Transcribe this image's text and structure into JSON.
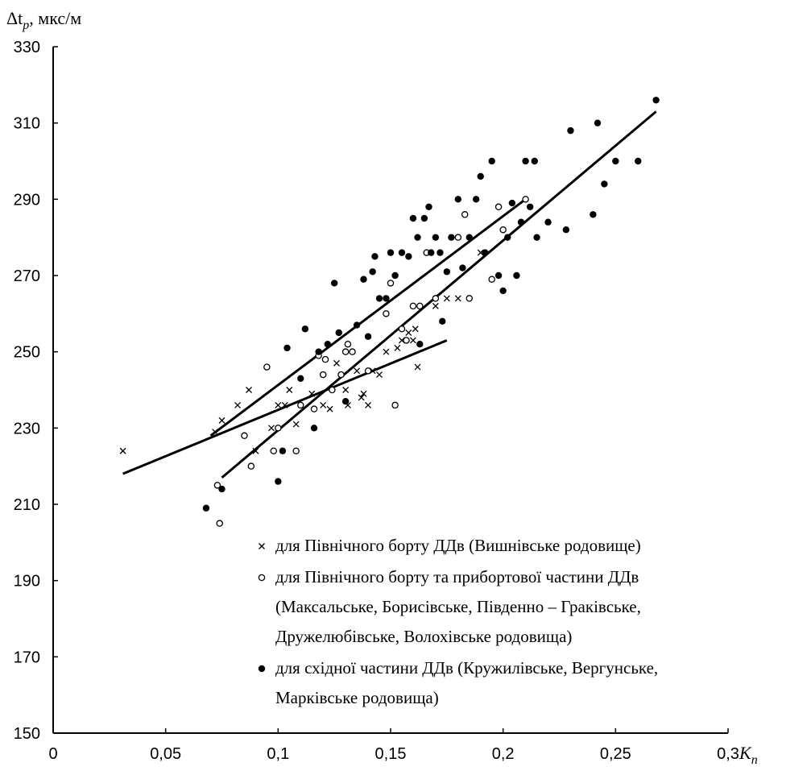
{
  "chart_data": {
    "type": "scatter",
    "title": "",
    "ylabel": "Δt",
    "ylabel_sub": "p",
    "ylabel_unit": ", мкс/м",
    "xlabel": "K",
    "xlabel_sub": "п",
    "xlim": [
      0,
      0.3
    ],
    "ylim": [
      150,
      330
    ],
    "x_ticks": [
      0,
      0.05,
      0.1,
      0.15,
      0.2,
      0.25,
      0.3
    ],
    "x_tick_labels": [
      "0",
      "0,05",
      "0,1",
      "0,15",
      "0,2",
      "0,25",
      "0,3"
    ],
    "y_ticks": [
      150,
      170,
      190,
      210,
      230,
      250,
      270,
      290,
      310,
      330
    ],
    "y_tick_labels": [
      "150",
      "170",
      "190",
      "210",
      "230",
      "250",
      "270",
      "290",
      "310",
      "330"
    ],
    "grid": false,
    "legend_position": "bottom-right",
    "legend": [
      {
        "marker": "cross",
        "lines": [
          "для Північного борту ДДв (Вишнівське родовище)"
        ]
      },
      {
        "marker": "circle",
        "lines": [
          "для Північного борту та прибортової частини ДДв",
          "(Максальське, Борисівське, Південно – Граківське,",
          "Дружелюбівське, Волохівське родовища)"
        ]
      },
      {
        "marker": "dot",
        "lines": [
          "для східної частини ДДв (Кружилівське, Вергунське,",
          "Марківське родовища)"
        ]
      }
    ],
    "series": [
      {
        "marker": "cross",
        "points": [
          [
            0.031,
            224
          ],
          [
            0.072,
            229
          ],
          [
            0.075,
            232
          ],
          [
            0.082,
            236
          ],
          [
            0.087,
            240
          ],
          [
            0.09,
            224
          ],
          [
            0.097,
            230
          ],
          [
            0.1,
            236
          ],
          [
            0.103,
            236
          ],
          [
            0.105,
            240
          ],
          [
            0.108,
            231
          ],
          [
            0.115,
            239
          ],
          [
            0.12,
            236
          ],
          [
            0.123,
            235
          ],
          [
            0.126,
            247
          ],
          [
            0.13,
            240
          ],
          [
            0.131,
            236
          ],
          [
            0.135,
            245
          ],
          [
            0.137,
            238
          ],
          [
            0.138,
            239
          ],
          [
            0.14,
            236
          ],
          [
            0.142,
            245
          ],
          [
            0.145,
            244
          ],
          [
            0.148,
            250
          ],
          [
            0.153,
            251
          ],
          [
            0.155,
            253
          ],
          [
            0.158,
            255
          ],
          [
            0.16,
            253
          ],
          [
            0.161,
            256
          ],
          [
            0.162,
            246
          ],
          [
            0.17,
            262
          ],
          [
            0.175,
            264
          ],
          [
            0.18,
            264
          ],
          [
            0.19,
            276
          ]
        ]
      },
      {
        "marker": "circle",
        "points": [
          [
            0.073,
            215
          ],
          [
            0.074,
            205
          ],
          [
            0.085,
            228
          ],
          [
            0.088,
            220
          ],
          [
            0.095,
            246
          ],
          [
            0.098,
            224
          ],
          [
            0.1,
            230
          ],
          [
            0.108,
            224
          ],
          [
            0.11,
            236
          ],
          [
            0.116,
            235
          ],
          [
            0.118,
            249
          ],
          [
            0.12,
            244
          ],
          [
            0.121,
            248
          ],
          [
            0.124,
            240
          ],
          [
            0.128,
            244
          ],
          [
            0.13,
            250
          ],
          [
            0.131,
            252
          ],
          [
            0.133,
            250
          ],
          [
            0.14,
            245
          ],
          [
            0.148,
            260
          ],
          [
            0.15,
            268
          ],
          [
            0.152,
            236
          ],
          [
            0.155,
            256
          ],
          [
            0.157,
            253
          ],
          [
            0.16,
            262
          ],
          [
            0.163,
            262
          ],
          [
            0.166,
            276
          ],
          [
            0.17,
            264
          ],
          [
            0.18,
            280
          ],
          [
            0.183,
            286
          ],
          [
            0.185,
            264
          ],
          [
            0.195,
            269
          ],
          [
            0.198,
            288
          ],
          [
            0.2,
            282
          ],
          [
            0.21,
            290
          ]
        ]
      },
      {
        "marker": "dot",
        "points": [
          [
            0.068,
            209
          ],
          [
            0.075,
            214
          ],
          [
            0.1,
            216
          ],
          [
            0.102,
            224
          ],
          [
            0.104,
            251
          ],
          [
            0.11,
            243
          ],
          [
            0.112,
            256
          ],
          [
            0.116,
            230
          ],
          [
            0.118,
            250
          ],
          [
            0.122,
            252
          ],
          [
            0.125,
            268
          ],
          [
            0.127,
            255
          ],
          [
            0.13,
            237
          ],
          [
            0.135,
            257
          ],
          [
            0.138,
            269
          ],
          [
            0.14,
            254
          ],
          [
            0.142,
            271
          ],
          [
            0.143,
            275
          ],
          [
            0.145,
            264
          ],
          [
            0.148,
            264
          ],
          [
            0.15,
            276
          ],
          [
            0.152,
            270
          ],
          [
            0.155,
            276
          ],
          [
            0.158,
            275
          ],
          [
            0.16,
            285
          ],
          [
            0.162,
            280
          ],
          [
            0.163,
            252
          ],
          [
            0.165,
            285
          ],
          [
            0.167,
            288
          ],
          [
            0.168,
            276
          ],
          [
            0.17,
            280
          ],
          [
            0.172,
            276
          ],
          [
            0.173,
            258
          ],
          [
            0.175,
            271
          ],
          [
            0.177,
            280
          ],
          [
            0.18,
            290
          ],
          [
            0.182,
            272
          ],
          [
            0.185,
            280
          ],
          [
            0.188,
            290
          ],
          [
            0.19,
            296
          ],
          [
            0.192,
            276
          ],
          [
            0.195,
            300
          ],
          [
            0.198,
            270
          ],
          [
            0.2,
            266
          ],
          [
            0.202,
            280
          ],
          [
            0.204,
            289
          ],
          [
            0.206,
            270
          ],
          [
            0.208,
            284
          ],
          [
            0.21,
            300
          ],
          [
            0.212,
            288
          ],
          [
            0.214,
            300
          ],
          [
            0.215,
            280
          ],
          [
            0.22,
            284
          ],
          [
            0.228,
            282
          ],
          [
            0.23,
            308
          ],
          [
            0.24,
            286
          ],
          [
            0.242,
            310
          ],
          [
            0.245,
            294
          ],
          [
            0.25,
            300
          ],
          [
            0.26,
            300
          ],
          [
            0.268,
            316
          ]
        ]
      }
    ],
    "trend_lines": [
      {
        "from": [
          0.031,
          218
        ],
        "to": [
          0.175,
          253
        ]
      },
      {
        "from": [
          0.07,
          228
        ],
        "to": [
          0.21,
          290
        ]
      },
      {
        "from": [
          0.075,
          217
        ],
        "to": [
          0.268,
          313
        ]
      }
    ]
  }
}
